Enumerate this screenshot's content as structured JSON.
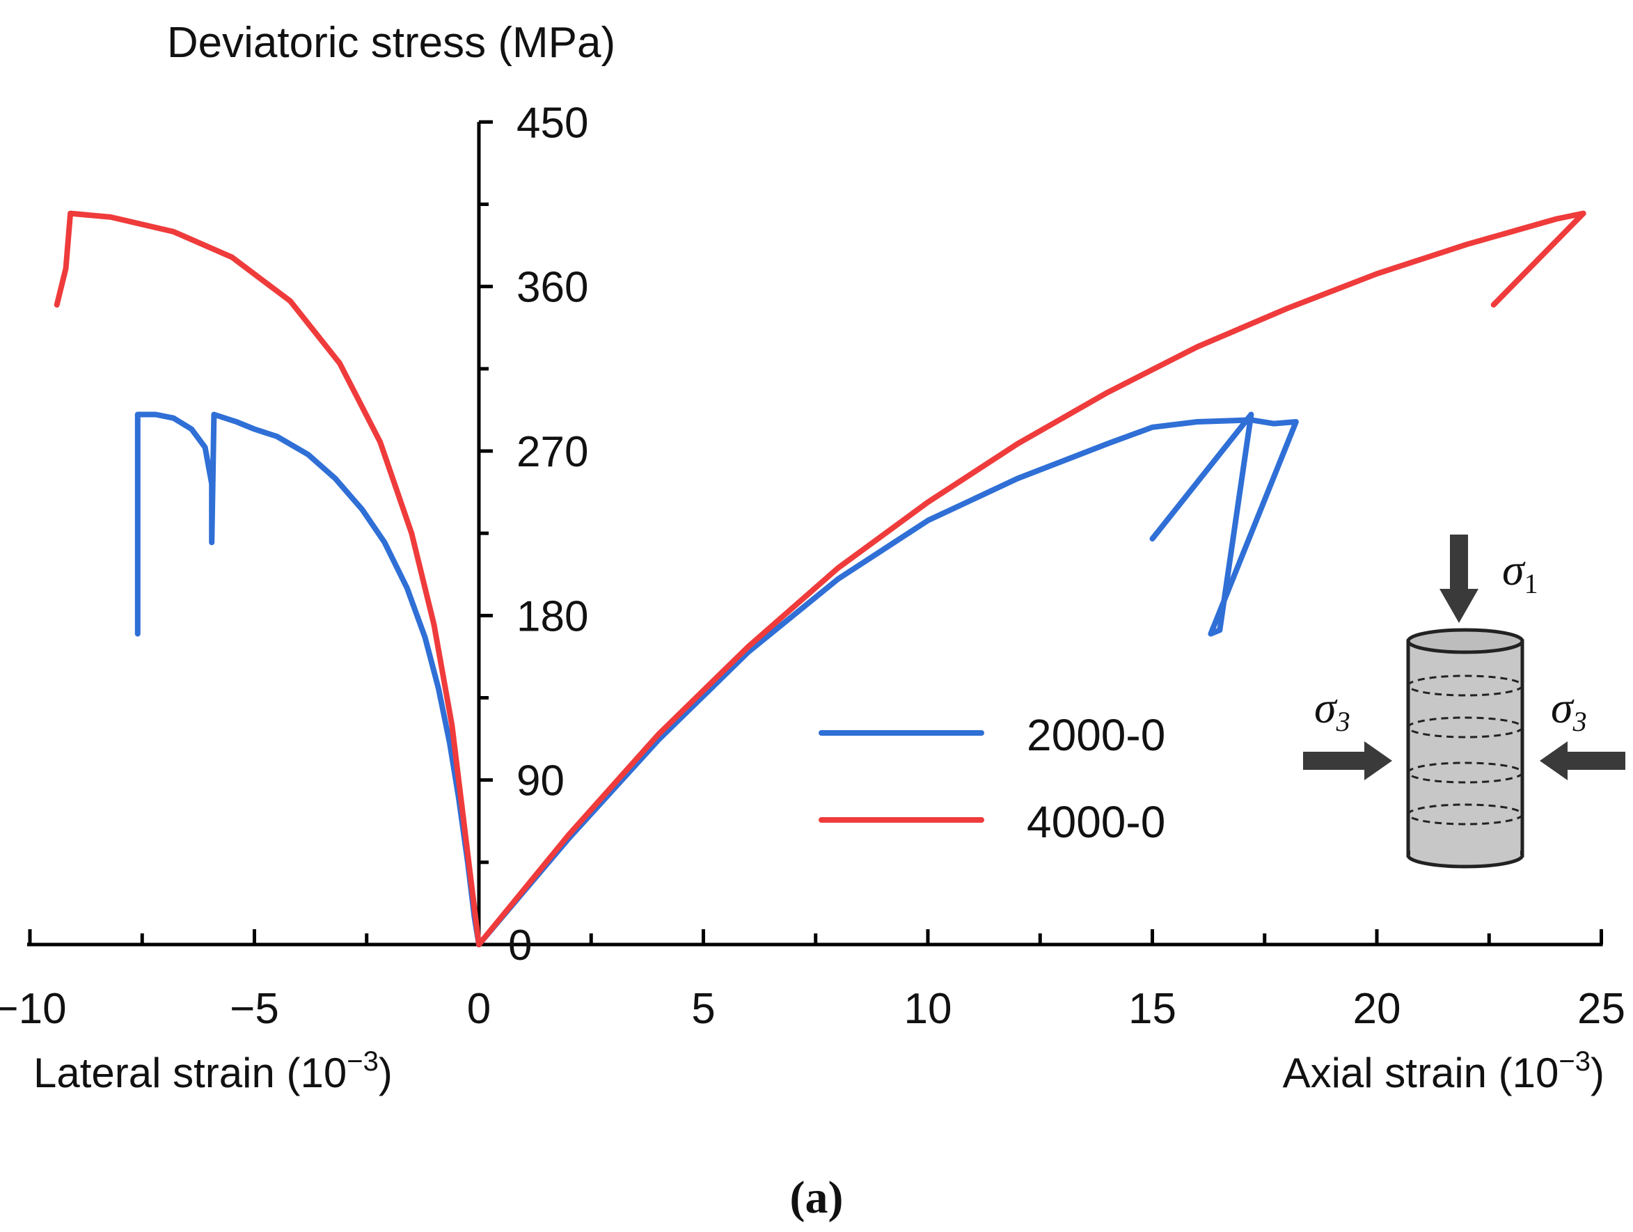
{
  "chart_data": {
    "type": "line",
    "title": "",
    "ylabel": "Deviatoric stress (MPa)",
    "xlabel_left": "Lateral strain (10",
    "xlabel_right": "Axial strain (10",
    "exponent": "−3",
    "ylim": [
      0,
      450
    ],
    "xlim": [
      -10,
      25
    ],
    "yticks": [
      "0",
      "90",
      "180",
      "270",
      "360",
      "450"
    ],
    "xticks": [
      "−10",
      "−5",
      "0",
      "5",
      "10",
      "15",
      "20",
      "25"
    ],
    "legend_position": "center-right",
    "series": [
      {
        "name": "2000-0",
        "color": "#2f6fd6",
        "lateral": [
          [
            -7.6,
            170
          ],
          [
            -7.6,
            290
          ],
          [
            -7.2,
            290
          ],
          [
            -6.8,
            288
          ],
          [
            -6.4,
            282
          ],
          [
            -6.1,
            272
          ],
          [
            -5.95,
            252
          ],
          [
            -5.95,
            220
          ],
          [
            -5.9,
            290
          ],
          [
            -5.4,
            286
          ],
          [
            -5,
            282
          ],
          [
            -4.5,
            278
          ],
          [
            -3.8,
            268
          ],
          [
            -3.2,
            255
          ],
          [
            -2.6,
            238
          ],
          [
            -2.1,
            220
          ],
          [
            -1.6,
            195
          ],
          [
            -1.2,
            168
          ],
          [
            -0.9,
            140
          ],
          [
            -0.65,
            110
          ],
          [
            -0.45,
            80
          ],
          [
            -0.25,
            45
          ],
          [
            -0.1,
            15
          ],
          [
            0,
            0
          ]
        ],
        "axial": [
          [
            0,
            0
          ],
          [
            2,
            58
          ],
          [
            4,
            112
          ],
          [
            6,
            160
          ],
          [
            8,
            200
          ],
          [
            10,
            232
          ],
          [
            12,
            255
          ],
          [
            14,
            274
          ],
          [
            15,
            283
          ],
          [
            16,
            286
          ],
          [
            17.2,
            287
          ],
          [
            17.7,
            285
          ],
          [
            18.2,
            286
          ],
          [
            18.2,
            286
          ],
          [
            16.3,
            170
          ],
          [
            16.5,
            172
          ],
          [
            16.5,
            172
          ],
          [
            17.2,
            290
          ],
          [
            17.2,
            290
          ],
          [
            15,
            222
          ]
        ]
      },
      {
        "name": "4000-0",
        "color": "#ef3b3b",
        "lateral": [
          [
            -9.4,
            350
          ],
          [
            -9.2,
            370
          ],
          [
            -9.1,
            400
          ],
          [
            -8.2,
            398
          ],
          [
            -6.8,
            390
          ],
          [
            -5.5,
            376
          ],
          [
            -4.2,
            352
          ],
          [
            -3.1,
            318
          ],
          [
            -2.2,
            275
          ],
          [
            -1.5,
            225
          ],
          [
            -1,
            175
          ],
          [
            -0.6,
            120
          ],
          [
            -0.3,
            60
          ],
          [
            -0.1,
            20
          ],
          [
            0,
            0
          ]
        ],
        "axial": [
          [
            0,
            0
          ],
          [
            2,
            60
          ],
          [
            4,
            115
          ],
          [
            6,
            163
          ],
          [
            8,
            206
          ],
          [
            10,
            242
          ],
          [
            12,
            274
          ],
          [
            14,
            302
          ],
          [
            16,
            327
          ],
          [
            18,
            348
          ],
          [
            20,
            367
          ],
          [
            22,
            383
          ],
          [
            24,
            397
          ],
          [
            24.6,
            400
          ],
          [
            22.6,
            350
          ]
        ]
      }
    ],
    "inset": {
      "sigma1": "σ",
      "sigma1_sub": "1",
      "sigma3_left": "σ",
      "sigma3_left_sub": "3",
      "sigma3_right": "σ",
      "sigma3_right_sub": "3"
    },
    "caption": "(a)"
  }
}
